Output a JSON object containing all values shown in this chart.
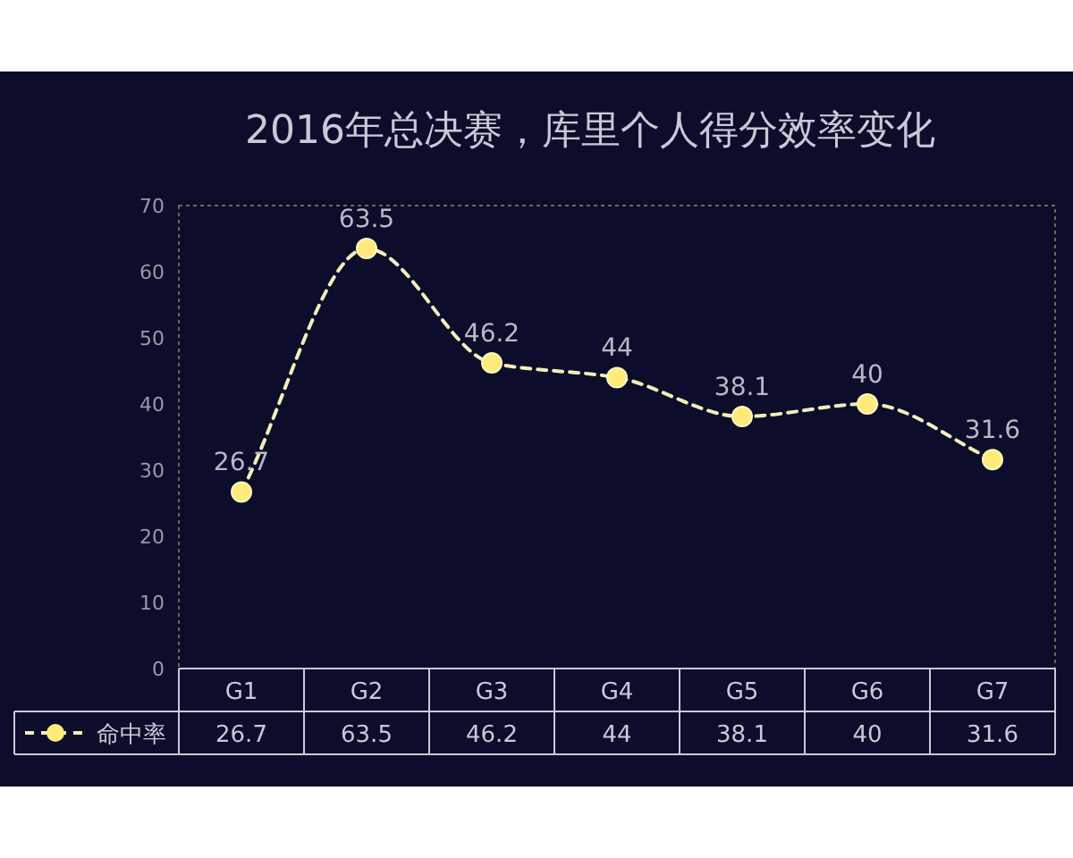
{
  "chart_data": {
    "type": "line",
    "title": "2016年总决赛，库里个人得分效率变化",
    "categories": [
      "G1",
      "G2",
      "G3",
      "G4",
      "G5",
      "G6",
      "G7"
    ],
    "series": [
      {
        "name": "命中率",
        "color": "#f3eeb8",
        "values": [
          26.7,
          63.5,
          46.2,
          44,
          38.1,
          40,
          31.6
        ],
        "value_labels": [
          "26.7",
          "63.5",
          "46.2",
          "44",
          "38.1",
          "40",
          "31.6"
        ]
      }
    ],
    "ylim": [
      0,
      70
    ],
    "yticks": [
      0,
      10,
      20,
      30,
      40,
      50,
      60,
      70
    ],
    "annotations": [
      "26.7",
      "63.5",
      "46.2",
      "44",
      "38.1",
      "40",
      "31.6"
    ],
    "marker": "circle",
    "line_style": "dashed",
    "legend": "bottom",
    "grid": false
  }
}
